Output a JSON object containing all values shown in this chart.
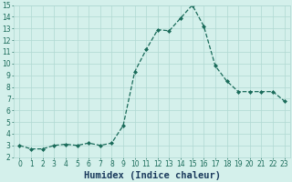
{
  "xlabel": "Humidex (Indice chaleur)",
  "x": [
    0,
    1,
    2,
    3,
    4,
    5,
    6,
    7,
    8,
    9,
    10,
    11,
    12,
    13,
    14,
    15,
    16,
    17,
    18,
    19,
    20,
    21,
    22,
    23
  ],
  "y": [
    3.0,
    2.7,
    2.7,
    3.0,
    3.1,
    3.0,
    3.2,
    3.0,
    3.2,
    4.7,
    9.3,
    11.2,
    12.9,
    12.8,
    13.9,
    15.0,
    13.2,
    9.8,
    8.5,
    7.6,
    7.6,
    7.6,
    7.6,
    6.8
  ],
  "line_color": "#1a6b5a",
  "marker": "D",
  "marker_size": 2.0,
  "bg_color": "#d4f0eb",
  "grid_color": "#b0d8d2",
  "ylim": [
    2,
    15
  ],
  "xlim": [
    -0.5,
    23.5
  ],
  "yticks": [
    2,
    3,
    4,
    5,
    6,
    7,
    8,
    9,
    10,
    11,
    12,
    13,
    14,
    15
  ],
  "xticks": [
    0,
    1,
    2,
    3,
    4,
    5,
    6,
    7,
    8,
    9,
    10,
    11,
    12,
    13,
    14,
    15,
    16,
    17,
    18,
    19,
    20,
    21,
    22,
    23
  ],
  "tick_color": "#1a6b5a",
  "xlabel_color": "#1a3a5c",
  "xlabel_fontsize": 7.5,
  "tick_fontsize": 5.5,
  "linewidth": 0.9
}
